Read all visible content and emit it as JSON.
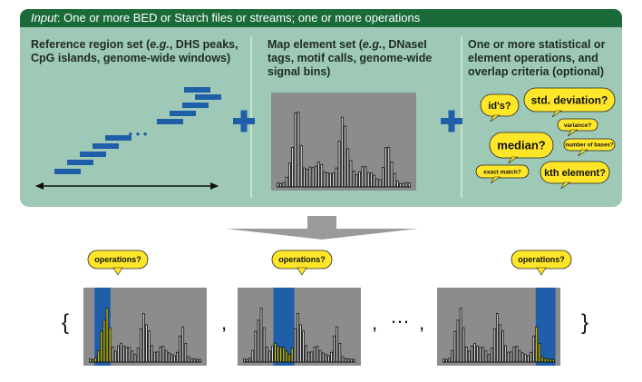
{
  "header": {
    "input_label": "Input",
    "input_text": ": One or more BED or Starch files or streams; one or more operations"
  },
  "columns": {
    "reference": {
      "line1_prefix": "Reference region set (",
      "eg": "e.g.",
      "line1_suffix": ", DHS peaks,",
      "line2": "CpG islands, genome-wide windows)"
    },
    "map": {
      "line1_prefix": "Map element set (",
      "eg": "e.g.",
      "line1_suffix": ", DNaseI",
      "line2": "tags, motif calls, genome-wide",
      "line3": "signal bins)"
    },
    "ops": {
      "line1": "One or more statistical or",
      "line2": "element operations, and",
      "line3": "overlap criteria (optional)"
    }
  },
  "ellipsis_dots": "• • •",
  "bubbles": {
    "ids": "id's?",
    "std": "std. deviation?",
    "variance": "variance?",
    "median": "median?",
    "number": "number of bases?",
    "exact": "exact match?",
    "kth": "kth element?"
  },
  "result": {
    "open_brace": "{",
    "close_brace": "}",
    "comma1": ",",
    "comma2": ",",
    "comma3": ",",
    "ellipsis": "…",
    "op_label_1": "operations?",
    "op_label_2": "operations?",
    "op_label_3": "operations?"
  },
  "colors": {
    "header": "#1b6b3a",
    "panel": "#9ec9b6",
    "blue": "#1f5ea8",
    "bubble": "#ffe629",
    "chart_bg": "#8c8c8c",
    "bar": "#111111",
    "highlight": "#f2e500",
    "arrow": "#9a9a9a"
  }
}
